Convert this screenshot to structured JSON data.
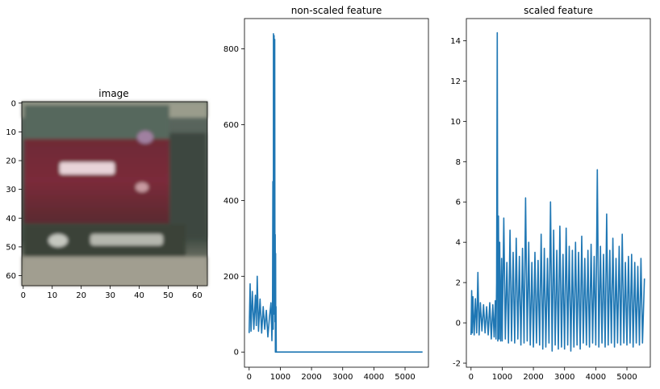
{
  "figure": {
    "panels": [
      {
        "id": "image",
        "title": "image"
      },
      {
        "id": "nonscaled",
        "title": "non-scaled feature"
      },
      {
        "id": "scaled",
        "title": "scaled feature"
      }
    ]
  },
  "chart_data": [
    {
      "type": "image",
      "title": "image",
      "xlim": [
        0,
        63
      ],
      "ylim": [
        63,
        0
      ],
      "xticks": [
        "0",
        "10",
        "20",
        "30",
        "40",
        "50",
        "60"
      ],
      "yticks": [
        "0",
        "10",
        "20",
        "30",
        "40",
        "50",
        "60"
      ],
      "description_colors": {
        "upper": "#5e6a62",
        "car_body": "#7a2b3b",
        "plate": "#e8d3d8",
        "road": "#8a887c",
        "dark": "#2f3a30"
      }
    },
    {
      "type": "line",
      "title": "non-scaled feature",
      "color": "#1f77b4",
      "xlim": [
        -150,
        5750
      ],
      "ylim": [
        -40,
        880
      ],
      "xticks": [
        "0",
        "1000",
        "2000",
        "3000",
        "4000",
        "5000"
      ],
      "yticks": [
        "0",
        "200",
        "400",
        "600",
        "800"
      ],
      "series": [
        {
          "x": [
            0,
            30,
            60,
            100,
            150,
            200,
            230,
            260,
            300,
            350,
            400,
            450,
            500,
            550,
            600,
            650,
            700,
            730,
            750,
            760,
            768,
            772,
            776,
            780,
            790,
            800,
            810,
            820,
            828,
            836,
            842,
            848,
            855,
            862,
            870,
            880,
            950,
            1500,
            2500,
            3500,
            4500,
            5560
          ],
          "y": [
            50,
            180,
            55,
            160,
            60,
            150,
            70,
            200,
            55,
            140,
            50,
            120,
            60,
            110,
            40,
            90,
            130,
            30,
            140,
            450,
            100,
            60,
            160,
            840,
            200,
            835,
            100,
            825,
            80,
            310,
            0,
            260,
            0,
            120,
            0,
            0,
            0,
            0,
            0,
            0,
            0,
            0
          ]
        }
      ]
    },
    {
      "type": "line",
      "title": "scaled feature",
      "color": "#1f77b4",
      "xlim": [
        -150,
        5750
      ],
      "ylim": [
        -2.2,
        15.1
      ],
      "xticks": [
        "0",
        "1000",
        "2000",
        "3000",
        "4000",
        "5000"
      ],
      "yticks": [
        "-2",
        "0",
        "2",
        "4",
        "6",
        "8",
        "10",
        "12",
        "14"
      ],
      "series": [
        {
          "x": [
            0,
            20,
            40,
            60,
            100,
            140,
            180,
            220,
            260,
            300,
            350,
            400,
            450,
            500,
            550,
            600,
            650,
            700,
            740,
            780,
            800,
            820,
            840,
            860,
            880,
            900,
            920,
            950,
            980,
            1000,
            1050,
            1100,
            1150,
            1200,
            1250,
            1300,
            1350,
            1400,
            1450,
            1500,
            1550,
            1600,
            1650,
            1700,
            1750,
            1800,
            1850,
            1900,
            1950,
            2000,
            2050,
            2100,
            2150,
            2200,
            2250,
            2300,
            2350,
            2400,
            2450,
            2500,
            2550,
            2600,
            2650,
            2700,
            2750,
            2800,
            2850,
            2900,
            2950,
            3000,
            3050,
            3100,
            3150,
            3200,
            3250,
            3300,
            3350,
            3400,
            3450,
            3500,
            3550,
            3600,
            3650,
            3700,
            3750,
            3800,
            3850,
            3900,
            3950,
            4000,
            4050,
            4100,
            4150,
            4200,
            4250,
            4300,
            4350,
            4400,
            4450,
            4500,
            4550,
            4600,
            4650,
            4700,
            4750,
            4800,
            4850,
            4900,
            4950,
            5000,
            5050,
            5100,
            5150,
            5200,
            5250,
            5300,
            5350,
            5400,
            5450,
            5500,
            5560
          ],
          "y": [
            -0.6,
            1.6,
            -0.5,
            1.3,
            -0.6,
            1.2,
            -0.5,
            2.5,
            -0.6,
            1.0,
            -0.4,
            0.9,
            -0.5,
            0.8,
            -0.6,
            1.0,
            -0.8,
            0.9,
            -0.7,
            1.1,
            -0.8,
            2.0,
            14.4,
            -0.9,
            5.3,
            -0.8,
            4.0,
            -0.9,
            3.2,
            -0.9,
            5.2,
            -0.8,
            3.0,
            -1.0,
            4.6,
            -0.9,
            3.5,
            -1.0,
            4.2,
            -0.8,
            3.3,
            -1.1,
            3.7,
            -1.0,
            6.2,
            -0.9,
            4.0,
            -1.1,
            3.0,
            -1.2,
            3.5,
            -1.0,
            3.1,
            -1.1,
            4.4,
            -1.3,
            3.7,
            -1.2,
            3.2,
            -1.0,
            6.0,
            -1.4,
            4.6,
            -1.1,
            3.6,
            -1.3,
            4.8,
            -1.2,
            3.4,
            -1.3,
            4.7,
            -1.1,
            3.8,
            -1.4,
            3.6,
            -1.2,
            4.0,
            -1.1,
            3.5,
            -1.3,
            4.3,
            -1.0,
            3.2,
            -1.1,
            3.6,
            -1.2,
            3.9,
            -1.0,
            3.3,
            -1.1,
            7.6,
            -1.2,
            3.8,
            -1.0,
            3.4,
            -1.2,
            5.4,
            -1.1,
            3.6,
            -1.0,
            4.2,
            -1.2,
            3.2,
            -1.0,
            3.8,
            -1.1,
            4.4,
            -1.0,
            3.0,
            -1.1,
            3.3,
            -1.0,
            3.4,
            -1.2,
            3.0,
            -1.0,
            2.8,
            -1.1,
            3.2,
            -1.0,
            2.2
          ]
        }
      ]
    }
  ]
}
